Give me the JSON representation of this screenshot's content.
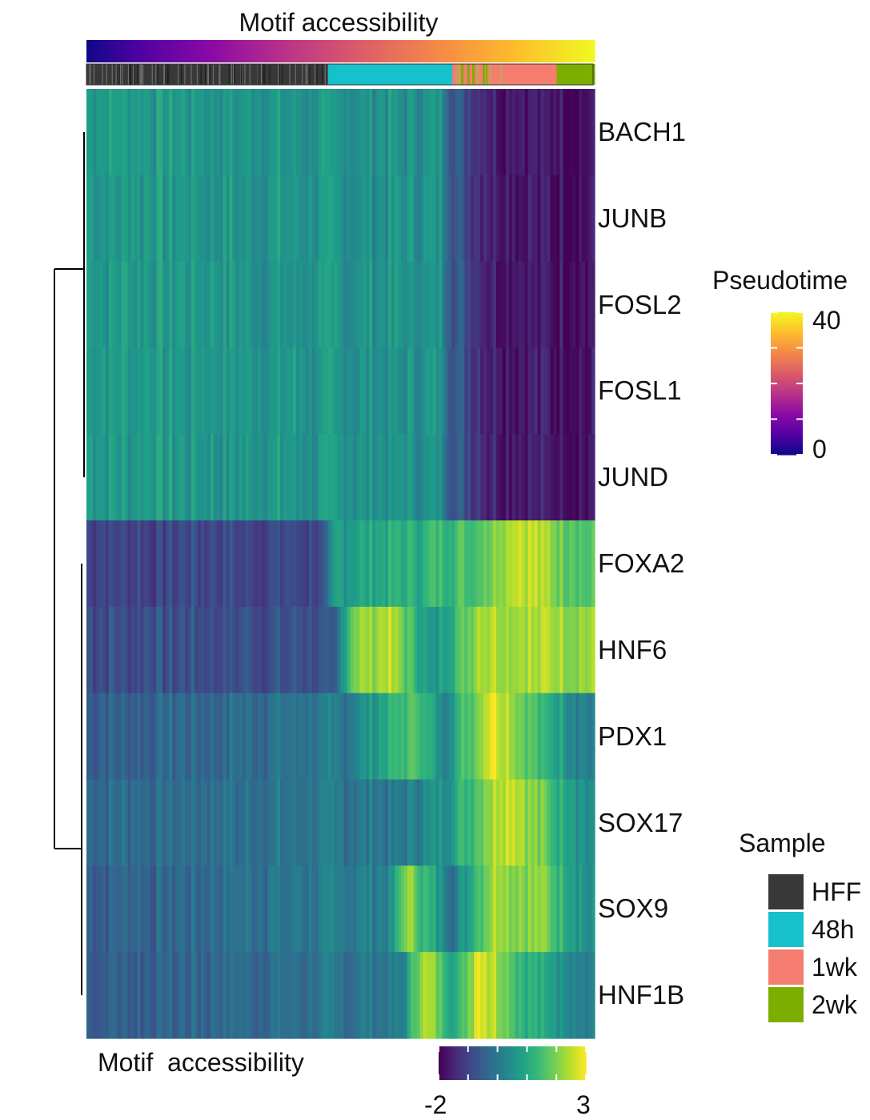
{
  "chart_data": {
    "type": "heatmap",
    "title": "Motif accessibility",
    "rows": [
      "BACH1",
      "JUNB",
      "FOSL2",
      "FOSL1",
      "JUND",
      "FOXA2",
      "HNF6",
      "PDX1",
      "SOX17",
      "SOX9",
      "HNF1B"
    ],
    "columns_ordered_by": "Pseudotime",
    "column_annotations": [
      {
        "name": "Pseudotime",
        "range": [
          0,
          40
        ]
      },
      {
        "name": "Sample",
        "segments": [
          {
            "label": "HFF",
            "fraction": 0.475
          },
          {
            "label": "48h",
            "fraction": 0.245
          },
          {
            "label": "1wk",
            "fraction": 0.205
          },
          {
            "label": "2wk",
            "fraction": 0.075
          }
        ]
      }
    ],
    "cluster_profiles": [
      {
        "rows": [
          "BACH1",
          "JUNB",
          "FOSL2",
          "FOSL1",
          "JUND"
        ],
        "pattern": "high-then-low",
        "stops": [
          [
            0.0,
            0.55
          ],
          [
            0.7,
            0.5
          ],
          [
            0.72,
            0.3
          ],
          [
            0.8,
            0.1
          ],
          [
            1.0,
            0.05
          ]
        ]
      },
      {
        "rows": [
          "FOXA2"
        ],
        "pattern": "low-then-high",
        "stops": [
          [
            0.0,
            0.22
          ],
          [
            0.47,
            0.22
          ],
          [
            0.49,
            0.55
          ],
          [
            0.75,
            0.7
          ],
          [
            0.85,
            0.95
          ],
          [
            1.0,
            0.7
          ]
        ]
      },
      {
        "rows": [
          "HNF6"
        ],
        "pattern": "low-then-high",
        "stops": [
          [
            0.0,
            0.25
          ],
          [
            0.49,
            0.25
          ],
          [
            0.52,
            0.8
          ],
          [
            0.6,
            0.9
          ],
          [
            0.68,
            0.5
          ],
          [
            0.78,
            0.9
          ],
          [
            1.0,
            0.85
          ]
        ]
      },
      {
        "rows": [
          "PDX1"
        ],
        "pattern": "peak-late",
        "stops": [
          [
            0.0,
            0.3
          ],
          [
            0.5,
            0.4
          ],
          [
            0.65,
            0.75
          ],
          [
            0.7,
            0.45
          ],
          [
            0.8,
            1.0
          ],
          [
            0.88,
            0.7
          ],
          [
            1.0,
            0.4
          ]
        ]
      },
      {
        "rows": [
          "SOX17"
        ],
        "pattern": "peak-late",
        "stops": [
          [
            0.0,
            0.35
          ],
          [
            0.6,
            0.4
          ],
          [
            0.7,
            0.5
          ],
          [
            0.83,
            0.98
          ],
          [
            0.9,
            0.75
          ],
          [
            1.0,
            0.45
          ]
        ]
      },
      {
        "rows": [
          "SOX9"
        ],
        "pattern": "peak-late",
        "stops": [
          [
            0.0,
            0.3
          ],
          [
            0.6,
            0.45
          ],
          [
            0.63,
            0.85
          ],
          [
            0.72,
            0.4
          ],
          [
            0.8,
            0.9
          ],
          [
            0.9,
            0.8
          ],
          [
            1.0,
            0.45
          ]
        ]
      },
      {
        "rows": [
          "HNF1B"
        ],
        "pattern": "peak-mid-late",
        "stops": [
          [
            0.0,
            0.3
          ],
          [
            0.62,
            0.4
          ],
          [
            0.66,
            0.9
          ],
          [
            0.73,
            0.6
          ],
          [
            0.77,
            1.0
          ],
          [
            0.85,
            0.7
          ],
          [
            1.0,
            0.4
          ]
        ]
      }
    ],
    "color_scale": {
      "name": "Motif  accessibility",
      "min": -2,
      "max": 3,
      "palette": "viridis"
    },
    "pseudotime_legend": {
      "title": "Pseudotime",
      "ticks": [
        "40",
        "0"
      ],
      "palette": "plasma"
    },
    "sample_legend": {
      "title": "Sample",
      "items": [
        {
          "label": "HFF",
          "color": "#383838"
        },
        {
          "label": "48h",
          "color": "#16c1cc"
        },
        {
          "label": "1wk",
          "color": "#f47d70"
        },
        {
          "label": "2wk",
          "color": "#7cae00"
        }
      ]
    },
    "dendrogram": {
      "groups": [
        [
          "BACH1",
          "JUNB",
          "FOSL2",
          "FOSL1",
          "JUND"
        ],
        [
          "FOXA2",
          "HNF6",
          "PDX1",
          "SOX17",
          "SOX9",
          "HNF1B"
        ]
      ]
    }
  }
}
